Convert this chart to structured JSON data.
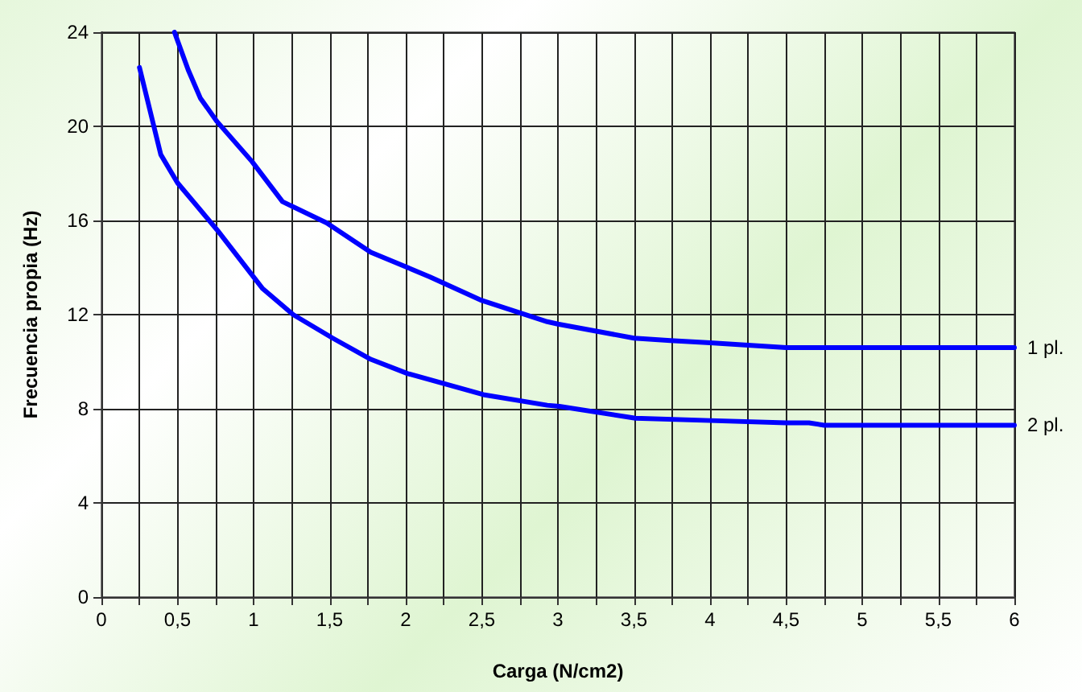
{
  "chart_data": {
    "type": "line",
    "xlabel": "Carga (N/cm2)",
    "ylabel": "Frecuencia propia (Hz)",
    "xlim": [
      0,
      6
    ],
    "ylim": [
      0,
      24
    ],
    "xticks": [
      0,
      {
        "value": 0.25,
        "label": null
      },
      {
        "value": 0.5,
        "label": "0,5"
      },
      {
        "value": 0.75,
        "label": null
      },
      1,
      {
        "value": 1.25,
        "label": null
      },
      {
        "value": 1.5,
        "label": "1,5"
      },
      {
        "value": 1.75,
        "label": null
      },
      2,
      {
        "value": 2.25,
        "label": null
      },
      {
        "value": 2.5,
        "label": "2,5"
      },
      {
        "value": 2.75,
        "label": null
      },
      3,
      {
        "value": 3.25,
        "label": null
      },
      {
        "value": 3.5,
        "label": "3,5"
      },
      {
        "value": 3.75,
        "label": null
      },
      4,
      {
        "value": 4.25,
        "label": null
      },
      {
        "value": 4.5,
        "label": "4,5"
      },
      {
        "value": 4.75,
        "label": null
      },
      5,
      {
        "value": 5.25,
        "label": null
      },
      {
        "value": 5.5,
        "label": "5,5"
      },
      {
        "value": 5.75,
        "label": null
      },
      6
    ],
    "yticks": [
      0,
      4,
      8,
      12,
      16,
      20,
      24
    ],
    "grid": true,
    "marker": "none",
    "line_style": "solid",
    "legend": false,
    "series": [
      {
        "name": "1 pl.",
        "color": "#0000ff",
        "x": [
          0.48,
          0.57,
          0.65,
          0.76,
          0.99,
          1.19,
          1.48,
          1.77,
          2.16,
          2.5,
          2.93,
          3.0,
          3.5,
          3.74,
          4.0,
          4.5,
          5.0,
          6.0
        ],
        "values": [
          24,
          22.4,
          21.2,
          20.2,
          18.5,
          16.8,
          15.9,
          14.65,
          13.6,
          12.6,
          11.7,
          11.6,
          11.0,
          10.9,
          10.8,
          10.6,
          10.6,
          10.6
        ]
      },
      {
        "name": "2 pl.",
        "color": "#0000ff",
        "x": [
          0.25,
          0.39,
          0.5,
          0.76,
          1.06,
          1.26,
          1.52,
          1.77,
          2.01,
          2.51,
          2.93,
          3.01,
          3.51,
          4.0,
          4.5,
          4.65,
          4.75,
          6.0
        ],
        "values": [
          22.5,
          18.8,
          17.6,
          15.6,
          13.1,
          12.0,
          11.0,
          10.1,
          9.5,
          8.6,
          8.15,
          8.1,
          7.6,
          7.5,
          7.4,
          7.4,
          7.3,
          7.3
        ]
      }
    ]
  }
}
